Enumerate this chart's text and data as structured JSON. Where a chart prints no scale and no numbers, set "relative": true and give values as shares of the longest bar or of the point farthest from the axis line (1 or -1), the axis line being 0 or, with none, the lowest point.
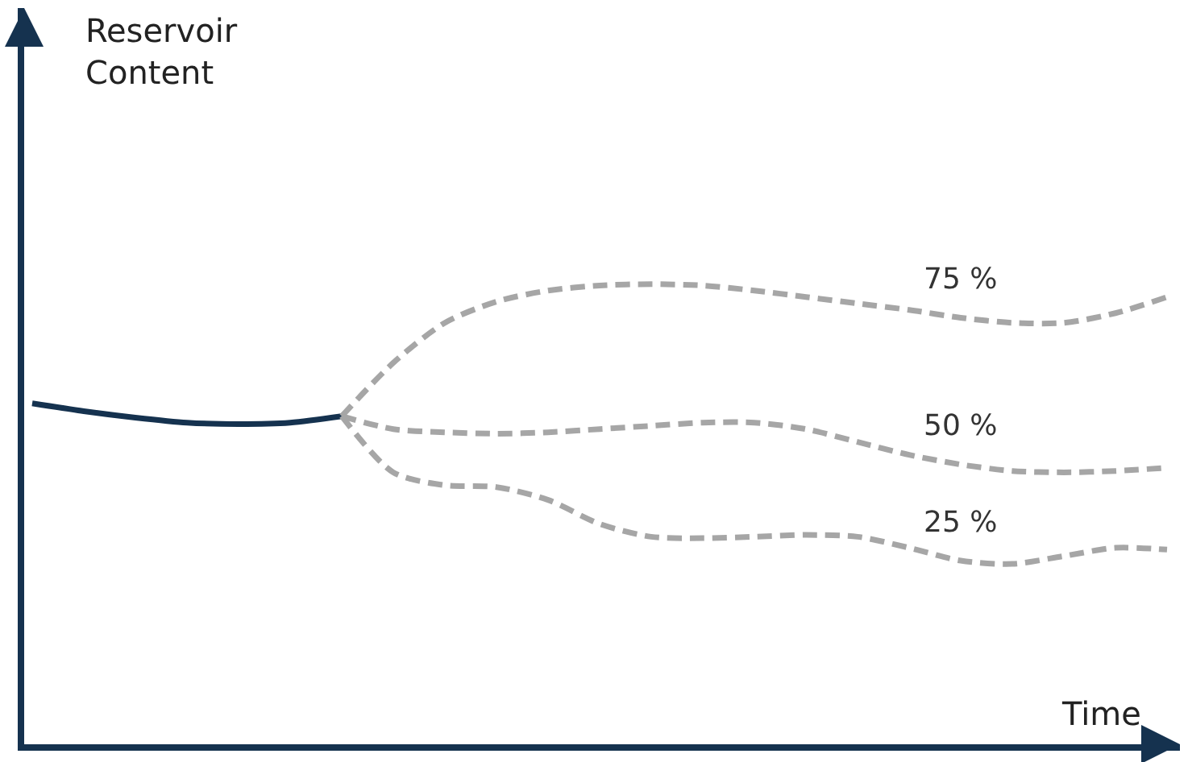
{
  "chart_data": {
    "type": "line",
    "relative": true,
    "xlabel": "Time",
    "annotations": [
      "Reservoir Content"
    ],
    "categories": [
      null,
      null,
      null,
      null,
      null,
      null,
      null,
      null,
      null,
      null,
      null,
      null,
      null,
      null,
      null,
      null,
      null,
      null,
      null,
      null,
      null,
      null,
      null
    ],
    "legend": false,
    "marker": "none",
    "series": [
      {
        "color": "#15324f",
        "line_style": "solid",
        "values": [
          0.741,
          0.724,
          0.71,
          0.699,
          0.696,
          0.699,
          0.713,
          null,
          null,
          null,
          null,
          null,
          null,
          null,
          null,
          null,
          null,
          null,
          null,
          null,
          null,
          null,
          null
        ]
      },
      {
        "name": "75 %",
        "color": "#a6a6a6",
        "line_style": "dashed",
        "values": [
          null,
          null,
          null,
          null,
          null,
          null,
          0.713,
          0.829,
          0.916,
          0.962,
          0.986,
          0.997,
          1.0,
          0.997,
          0.986,
          0.972,
          0.958,
          0.944,
          0.927,
          0.916,
          0.916,
          0.937,
          0.972
        ]
      },
      {
        "name": "50 %",
        "color": "#a6a6a6",
        "line_style": "dashed",
        "values": [
          null,
          null,
          null,
          null,
          null,
          null,
          0.713,
          0.685,
          0.678,
          0.675,
          0.678,
          0.685,
          0.692,
          0.699,
          0.699,
          0.685,
          0.657,
          0.629,
          0.608,
          0.594,
          0.591,
          0.594,
          0.601
        ]
      },
      {
        "name": "25 %",
        "color": "#a6a6a6",
        "line_style": "dashed",
        "values": [
          null,
          null,
          null,
          null,
          null,
          null,
          0.713,
          0.591,
          0.563,
          0.559,
          0.531,
          0.479,
          0.451,
          0.448,
          0.451,
          0.455,
          0.451,
          0.427,
          0.399,
          0.392,
          0.409,
          0.427,
          0.423
        ]
      }
    ]
  }
}
